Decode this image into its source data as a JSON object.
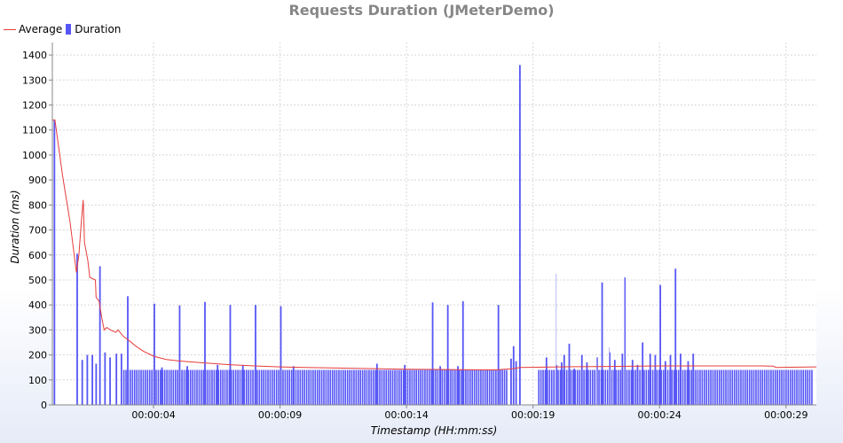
{
  "chart_data": {
    "type": "bar",
    "title": "Requests Duration (JMeterDemo)",
    "xlabel": "Timestamp (HH:mm:ss)",
    "ylabel": "Duration (ms)",
    "ylim": [
      0,
      1450
    ],
    "xlim": [
      0,
      30.2
    ],
    "legend_position": "top-left",
    "grid": true,
    "yticks": [
      0,
      100,
      200,
      300,
      400,
      500,
      600,
      700,
      800,
      900,
      1000,
      1100,
      1200,
      1300,
      1400
    ],
    "xticks": [
      {
        "t": 4,
        "label": "00:00:04"
      },
      {
        "t": 9,
        "label": "00:00:09"
      },
      {
        "t": 14,
        "label": "00:00:14"
      },
      {
        "t": 19,
        "label": "00:00:19"
      },
      {
        "t": 24,
        "label": "00:00:24"
      },
      {
        "t": 29,
        "label": "00:00:29"
      }
    ],
    "series": [
      {
        "name": "Average",
        "kind": "line",
        "color": "#e63c3c",
        "points": [
          [
            0.0,
            1140
          ],
          [
            0.1,
            1140
          ],
          [
            0.4,
            920
          ],
          [
            0.7,
            730
          ],
          [
            0.95,
            530
          ],
          [
            1.05,
            600
          ],
          [
            1.15,
            740
          ],
          [
            1.22,
            820
          ],
          [
            1.27,
            650
          ],
          [
            1.4,
            580
          ],
          [
            1.48,
            510
          ],
          [
            1.7,
            500
          ],
          [
            1.73,
            430
          ],
          [
            1.85,
            415
          ],
          [
            1.95,
            350
          ],
          [
            2.05,
            300
          ],
          [
            2.15,
            310
          ],
          [
            2.3,
            300
          ],
          [
            2.5,
            290
          ],
          [
            2.6,
            300
          ],
          [
            2.8,
            275
          ],
          [
            3.0,
            260
          ],
          [
            3.3,
            235
          ],
          [
            3.6,
            215
          ],
          [
            4.0,
            195
          ],
          [
            4.5,
            182
          ],
          [
            5.0,
            176
          ],
          [
            6.0,
            168
          ],
          [
            7.0,
            161
          ],
          [
            8.0,
            156
          ],
          [
            9.0,
            152
          ],
          [
            10,
            150
          ],
          [
            12,
            146
          ],
          [
            14,
            143
          ],
          [
            16,
            141
          ],
          [
            17.5,
            140
          ],
          [
            18.2,
            145
          ],
          [
            18.5,
            150
          ],
          [
            20,
            152
          ],
          [
            22,
            154
          ],
          [
            24,
            156
          ],
          [
            26,
            156
          ],
          [
            27,
            156
          ],
          [
            28,
            156
          ],
          [
            28.5,
            155
          ],
          [
            28.6,
            150
          ],
          [
            30.2,
            152
          ]
        ]
      },
      {
        "name": "Duration",
        "kind": "bar",
        "color": "#5656f5",
        "baseline_ms": 140,
        "baseline_ranges": [
          [
            2.8,
            18.0
          ],
          [
            19.2,
            30.0
          ]
        ],
        "baseline_step": 0.085,
        "spikes": [
          [
            0.05,
            1140
          ],
          [
            0.95,
            605
          ],
          [
            1.15,
            180
          ],
          [
            1.35,
            200
          ],
          [
            1.55,
            200
          ],
          [
            1.7,
            165
          ],
          [
            1.85,
            555
          ],
          [
            2.05,
            210
          ],
          [
            2.25,
            190
          ],
          [
            2.5,
            205
          ],
          [
            2.7,
            205
          ],
          [
            2.95,
            435
          ],
          [
            4.0,
            405
          ],
          [
            4.3,
            150
          ],
          [
            5.0,
            398
          ],
          [
            5.3,
            155
          ],
          [
            6.0,
            412
          ],
          [
            6.5,
            160
          ],
          [
            7.0,
            400
          ],
          [
            7.5,
            160
          ],
          [
            8.0,
            400
          ],
          [
            9.0,
            395
          ],
          [
            9.5,
            155
          ],
          [
            12.8,
            165
          ],
          [
            13.9,
            160
          ],
          [
            15.0,
            410
          ],
          [
            15.3,
            155
          ],
          [
            15.6,
            400
          ],
          [
            16.0,
            155
          ],
          [
            16.2,
            415
          ],
          [
            17.6,
            400
          ],
          [
            18.1,
            185
          ],
          [
            18.2,
            235
          ],
          [
            18.3,
            175
          ],
          [
            18.45,
            1360
          ],
          [
            19.5,
            190
          ],
          [
            19.9,
            160
          ],
          [
            20.1,
            170
          ],
          [
            20.2,
            200
          ],
          [
            20.4,
            245
          ],
          [
            20.6,
            145
          ],
          [
            20.9,
            200
          ],
          [
            21.1,
            170
          ],
          [
            21.5,
            190
          ],
          [
            21.7,
            490
          ],
          [
            22.0,
            210
          ],
          [
            22.2,
            180
          ],
          [
            22.5,
            205
          ],
          [
            22.6,
            510
          ],
          [
            22.9,
            180
          ],
          [
            23.1,
            160
          ],
          [
            23.3,
            250
          ],
          [
            23.6,
            205
          ],
          [
            23.8,
            200
          ],
          [
            24.0,
            480
          ],
          [
            24.2,
            175
          ],
          [
            24.4,
            200
          ],
          [
            24.6,
            545
          ],
          [
            24.8,
            205
          ],
          [
            25.1,
            175
          ],
          [
            25.3,
            205
          ]
        ],
        "thin_spikes": [
          [
            19.9,
            525
          ],
          [
            21.5,
            190
          ],
          [
            22.0,
            230
          ],
          [
            22.6,
            510
          ]
        ]
      }
    ]
  }
}
